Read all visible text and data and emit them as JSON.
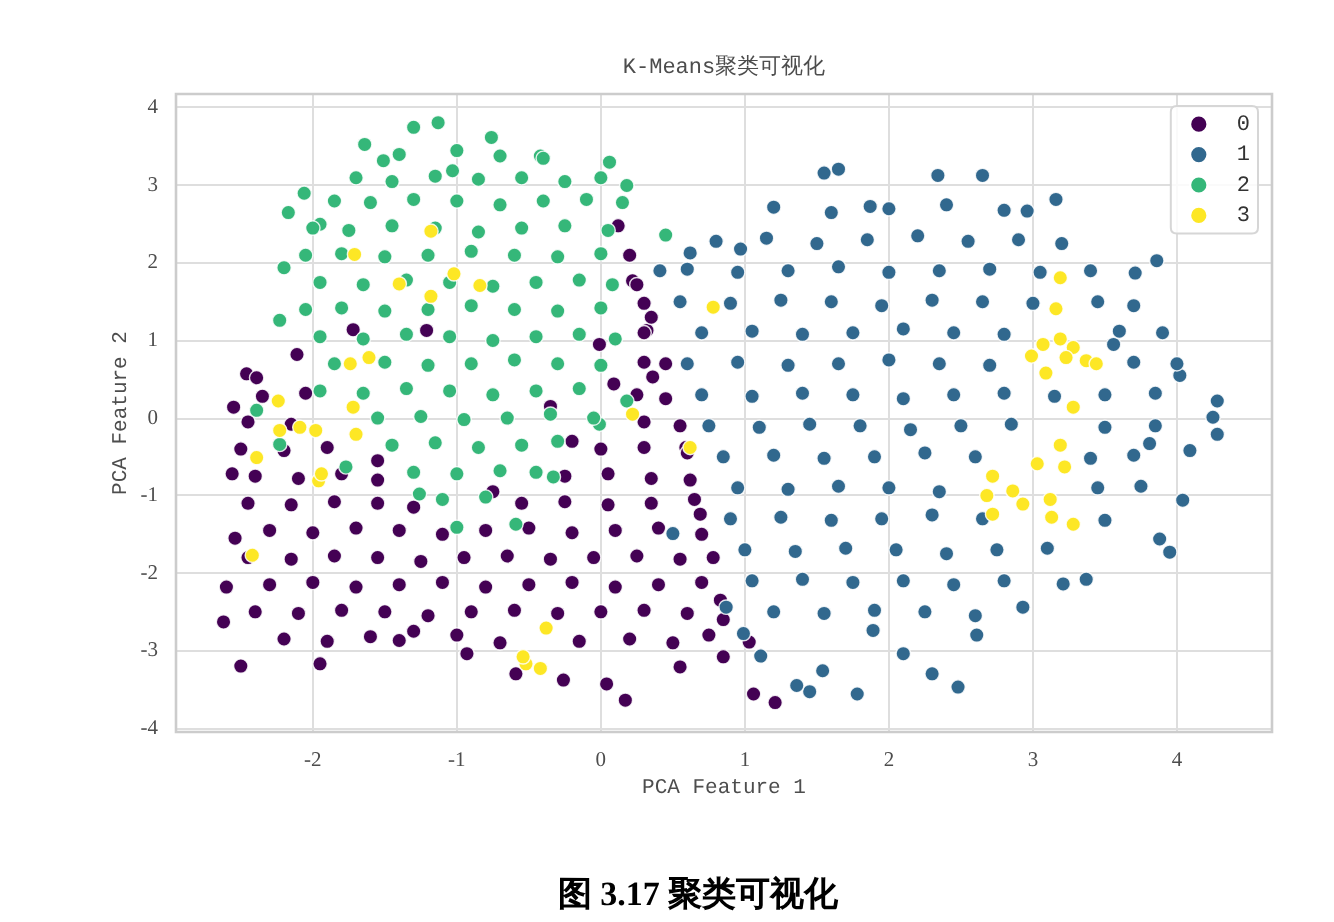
{
  "chart_data": {
    "type": "scatter",
    "title": "K-Means聚类可视化",
    "xlabel": "PCA Feature 1",
    "ylabel": "PCA Feature 2",
    "xlim": [
      -2.95,
      4.66
    ],
    "ylim": [
      -4.05,
      4.18
    ],
    "xticks": [
      -2,
      -1,
      0,
      1,
      2,
      3,
      4
    ],
    "yticks": [
      -4,
      -3,
      -2,
      -1,
      0,
      1,
      2,
      3,
      4
    ],
    "grid": true,
    "legend": "top right",
    "marker": "circle",
    "annotations": [
      "图 3.17 聚类可视化"
    ],
    "series": [
      {
        "name": "0",
        "color": "#440154",
        "x": [
          -2.5,
          -2.62,
          -2.6,
          -2.54,
          -2.56,
          -2.55,
          -1.95,
          -1.4,
          -0.59,
          0.04,
          0.17,
          -0.26,
          -0.93,
          0.55,
          1.06,
          1.21,
          1.03,
          0.85,
          0.83,
          0.69,
          0.59,
          0.12,
          0.22,
          0.32,
          0.36,
          -2.46,
          -2.39,
          -2.11,
          -1.72,
          -1.21,
          -0.01,
          0.09,
          -2.35,
          -2.05,
          0.25,
          0.45,
          -2.45,
          -2.15,
          0.3,
          0.55,
          -2.5,
          -2.2,
          -1.9,
          0,
          0.3,
          0.6,
          -2.4,
          -2.1,
          -1.8,
          -1.55,
          -0.25,
          0.05,
          0.35,
          0.62,
          -2.45,
          -2.15,
          -1.85,
          -1.55,
          -1.3,
          -0.55,
          -0.25,
          0.05,
          0.35,
          0.65,
          -2.3,
          -2,
          -1.7,
          -1.4,
          -1.1,
          -0.8,
          -0.5,
          -0.2,
          0.1,
          0.4,
          0.7,
          -2.45,
          -2.15,
          -1.85,
          -1.55,
          -1.25,
          -0.95,
          -0.65,
          -0.35,
          -0.05,
          0.25,
          0.55,
          0.78,
          -2.3,
          -2,
          -1.7,
          -1.4,
          -1.1,
          -0.8,
          -0.5,
          -0.2,
          0.1,
          0.4,
          0.7,
          -2.4,
          -2.1,
          -1.8,
          -1.5,
          -1.2,
          -0.9,
          -0.6,
          -0.3,
          0,
          0.3,
          0.6,
          0.85,
          -2.2,
          -1.9,
          -1.6,
          -1.3,
          -1,
          -0.7,
          -0.15,
          0.2,
          0.5,
          0.75,
          0.3,
          0.45,
          0.3,
          0.35,
          0.3,
          0.25,
          0.2,
          -1.55,
          -0.75,
          -0.2,
          -0.35
        ],
        "values": [
          -3.2,
          -2.63,
          -2.18,
          -1.55,
          -0.72,
          0.14,
          -3.17,
          -2.87,
          -3.3,
          -3.43,
          -3.64,
          -3.38,
          -3.04,
          -3.21,
          -3.56,
          -3.67,
          -2.89,
          -3.08,
          -2.35,
          -1.24,
          -0.38,
          2.48,
          1.77,
          1.13,
          0.53,
          0.57,
          0.52,
          0.82,
          1.14,
          1.13,
          0.95,
          0.44,
          0.28,
          0.32,
          0.3,
          0.25,
          -0.05,
          -0.08,
          -0.05,
          -0.1,
          -0.4,
          -0.42,
          -0.38,
          -0.4,
          -0.38,
          -0.45,
          -0.75,
          -0.78,
          -0.72,
          -0.8,
          -0.75,
          -0.72,
          -0.78,
          -0.8,
          -1.1,
          -1.12,
          -1.08,
          -1.1,
          -1.15,
          -1.1,
          -1.08,
          -1.12,
          -1.1,
          -1.05,
          -1.45,
          -1.48,
          -1.42,
          -1.45,
          -1.5,
          -1.45,
          -1.42,
          -1.48,
          -1.45,
          -1.42,
          -1.5,
          -1.8,
          -1.82,
          -1.78,
          -1.8,
          -1.85,
          -1.8,
          -1.78,
          -1.82,
          -1.8,
          -1.78,
          -1.82,
          -1.8,
          -2.15,
          -2.12,
          -2.18,
          -2.15,
          -2.12,
          -2.18,
          -2.15,
          -2.12,
          -2.18,
          -2.15,
          -2.12,
          -2.5,
          -2.52,
          -2.48,
          -2.5,
          -2.55,
          -2.5,
          -2.48,
          -2.52,
          -2.5,
          -2.48,
          -2.52,
          -2.6,
          -2.85,
          -2.88,
          -2.82,
          -2.75,
          -2.8,
          -2.9,
          -2.88,
          -2.85,
          -2.9,
          -2.8,
          0.72,
          0.7,
          1.1,
          1.3,
          1.48,
          1.72,
          2.1,
          -0.55,
          -0.95,
          -0.3,
          0.15
        ]
      },
      {
        "name": "1",
        "color": "#31688e",
        "x": [
          1.55,
          1.65,
          2.34,
          2.65,
          3.16,
          3.71,
          3.86,
          0.62,
          0.41,
          4.28,
          4.25,
          4.02,
          0.97,
          1.87,
          2.96,
          3.56,
          4.28,
          4.09,
          4.04,
          3.95,
          3.88,
          3.81,
          3.37,
          3.21,
          2.93,
          2.61,
          2.48,
          2.3,
          1.78,
          1.45,
          1.36,
          1.11,
          1.54,
          1.89,
          2.1,
          0.99,
          0.87,
          0.5,
          1.2,
          1.6,
          2,
          2.4,
          2.8,
          0.8,
          1.15,
          1.5,
          1.85,
          2.2,
          2.55,
          2.9,
          3.2,
          0.6,
          0.95,
          1.3,
          1.65,
          2,
          2.35,
          2.7,
          3.05,
          3.4,
          0.55,
          0.9,
          1.25,
          1.6,
          1.95,
          2.3,
          2.65,
          3,
          3.45,
          3.7,
          0.7,
          1.05,
          1.4,
          1.75,
          2.1,
          2.45,
          2.8,
          3.6,
          3.9,
          0.6,
          0.95,
          1.3,
          1.65,
          2,
          2.35,
          2.7,
          3.7,
          4,
          0.7,
          1.05,
          1.4,
          1.75,
          2.1,
          2.45,
          2.8,
          3.15,
          3.5,
          3.85,
          0.75,
          1.1,
          1.45,
          1.8,
          2.15,
          2.5,
          2.85,
          3.5,
          3.85,
          0.85,
          1.2,
          1.55,
          1.9,
          2.25,
          2.6,
          3.4,
          3.7,
          0.95,
          1.3,
          1.65,
          2,
          2.35,
          3.45,
          3.75,
          0.9,
          1.25,
          1.6,
          1.95,
          2.3,
          2.65,
          3.5,
          1,
          1.35,
          1.7,
          2.05,
          2.4,
          2.75,
          3.1,
          1.05,
          1.4,
          1.75,
          2.1,
          2.45,
          2.8,
          1.2,
          1.55,
          1.9,
          2.25,
          2.6
        ],
        "values": [
          3.16,
          3.21,
          3.13,
          3.13,
          2.82,
          1.87,
          2.03,
          2.13,
          1.9,
          0.22,
          0.01,
          0.55,
          2.18,
          2.73,
          2.67,
          0.95,
          -0.21,
          -0.42,
          -1.06,
          -1.73,
          -1.56,
          -0.33,
          -2.08,
          -2.14,
          -2.44,
          -2.8,
          -3.47,
          -3.3,
          -3.56,
          -3.53,
          -3.45,
          -3.07,
          -3.26,
          -2.74,
          -3.04,
          -2.78,
          -2.44,
          -1.49,
          2.72,
          2.65,
          2.7,
          2.75,
          2.68,
          2.28,
          2.32,
          2.25,
          2.3,
          2.35,
          2.28,
          2.3,
          2.25,
          1.92,
          1.88,
          1.9,
          1.95,
          1.88,
          1.9,
          1.92,
          1.88,
          1.9,
          1.5,
          1.48,
          1.52,
          1.5,
          1.45,
          1.52,
          1.5,
          1.48,
          1.5,
          1.45,
          1.1,
          1.12,
          1.08,
          1.1,
          1.15,
          1.1,
          1.08,
          1.12,
          1.1,
          0.7,
          0.72,
          0.68,
          0.7,
          0.75,
          0.7,
          0.68,
          0.72,
          0.7,
          0.3,
          0.28,
          0.32,
          0.3,
          0.25,
          0.3,
          0.32,
          0.28,
          0.3,
          0.32,
          -0.1,
          -0.12,
          -0.08,
          -0.1,
          -0.15,
          -0.1,
          -0.08,
          -0.12,
          -0.1,
          -0.5,
          -0.48,
          -0.52,
          -0.5,
          -0.45,
          -0.5,
          -0.52,
          -0.48,
          -0.9,
          -0.92,
          -0.88,
          -0.9,
          -0.95,
          -0.9,
          -0.88,
          -1.3,
          -1.28,
          -1.32,
          -1.3,
          -1.25,
          -1.3,
          -1.32,
          -1.7,
          -1.72,
          -1.68,
          -1.7,
          -1.75,
          -1.7,
          -1.68,
          -2.1,
          -2.08,
          -2.12,
          -2.1,
          -2.15,
          -2.1,
          -2.5,
          -2.52,
          -2.48,
          -2.5,
          -2.55
        ]
      },
      {
        "name": "2",
        "color": "#35b779",
        "x": [
          -1.13,
          -1.3,
          -1.64,
          -0.76,
          -2.06,
          -2.17,
          -2.2,
          -2.23,
          0.18,
          0.45,
          0.06,
          -0.42,
          -1.51,
          -1.95,
          -1.03,
          -1,
          -0.59,
          -0.33,
          -0.01,
          0.18,
          -1.77,
          -2.39,
          -2.23,
          -1.26,
          -1.4,
          -1,
          -0.7,
          -0.4,
          -1.7,
          -1.45,
          -1.15,
          -0.85,
          -0.55,
          -0.25,
          0,
          -1.85,
          -1.6,
          -1.3,
          -1,
          -0.7,
          -0.4,
          -0.1,
          0.15,
          -2,
          -1.75,
          -1.45,
          -1.15,
          -0.85,
          -0.55,
          -0.25,
          0.05,
          -2.05,
          -1.8,
          -1.5,
          -1.2,
          -0.9,
          -0.6,
          -0.3,
          0,
          -1.95,
          -1.65,
          -1.35,
          -1.05,
          -0.75,
          -0.45,
          -0.15,
          0.08,
          -2.05,
          -1.8,
          -1.5,
          -1.2,
          -0.9,
          -0.6,
          -0.3,
          0,
          -1.95,
          -1.65,
          -1.35,
          -1.05,
          -0.75,
          -0.45,
          -0.15,
          0.1,
          -1.85,
          -1.5,
          -1.2,
          -0.9,
          -0.6,
          -0.3,
          0,
          -1.95,
          -1.65,
          -1.35,
          -1.05,
          -0.75,
          -0.45,
          -0.15,
          -1.55,
          -1.25,
          -0.95,
          -0.65,
          -0.35,
          -0.05,
          -1.45,
          -1.15,
          -0.85,
          -0.55,
          -0.3,
          -1.3,
          -1,
          -0.7,
          -0.45,
          -1.1,
          -0.8
        ],
        "values": [
          3.81,
          3.75,
          3.53,
          3.62,
          2.9,
          2.65,
          1.94,
          1.26,
          3,
          2.36,
          3.3,
          3.38,
          3.32,
          2.5,
          3.19,
          -1.41,
          -1.37,
          -0.76,
          -0.08,
          0.22,
          -0.63,
          0.1,
          -0.34,
          -0.98,
          3.4,
          3.45,
          3.38,
          3.35,
          3.1,
          3.05,
          3.12,
          3.08,
          3.1,
          3.05,
          3.1,
          2.8,
          2.78,
          2.82,
          2.8,
          2.75,
          2.8,
          2.82,
          2.78,
          2.45,
          2.42,
          2.48,
          2.45,
          2.4,
          2.45,
          2.48,
          2.42,
          2.1,
          2.12,
          2.08,
          2.1,
          2.15,
          2.1,
          2.08,
          2.12,
          1.75,
          1.72,
          1.78,
          1.75,
          1.7,
          1.75,
          1.78,
          1.72,
          1.4,
          1.42,
          1.38,
          1.4,
          1.45,
          1.4,
          1.38,
          1.42,
          1.05,
          1.02,
          1.08,
          1.05,
          1,
          1.05,
          1.08,
          1.02,
          0.7,
          0.72,
          0.68,
          0.7,
          0.75,
          0.7,
          0.68,
          0.35,
          0.32,
          0.38,
          0.35,
          0.3,
          0.35,
          0.38,
          0,
          0.02,
          -0.02,
          0,
          0.05,
          0,
          -0.35,
          -0.32,
          -0.38,
          -0.35,
          -0.3,
          -0.7,
          -0.72,
          -0.68,
          -0.7,
          -1.05,
          -1.02
        ]
      },
      {
        "name": "3",
        "color": "#fde725",
        "x": [
          -0.52,
          -0.42,
          -0.54,
          -0.38,
          -1.96,
          -1.94,
          -2.23,
          -2.09,
          -1.98,
          -1.7,
          -1.72,
          -2.39,
          -2.42,
          0.62,
          -1.71,
          -1.18,
          -1.02,
          -0.84,
          -1.18,
          -1.4,
          -1.61,
          -1.74,
          -2.24,
          0.22,
          3.19,
          3.16,
          3.07,
          3.19,
          3.28,
          3.37,
          3.44,
          2.99,
          3.23,
          3.09,
          0.78,
          3.19,
          2.72,
          2.68,
          2.86,
          2.93,
          3.12,
          3.13,
          3.28,
          2.72,
          3.03,
          3.22,
          3.28
        ],
        "values": [
          -3.17,
          -3.23,
          -3.08,
          -2.71,
          -0.81,
          -0.72,
          -0.16,
          -0.12,
          -0.16,
          -0.21,
          0.14,
          -0.51,
          -1.77,
          -0.38,
          2.11,
          2.41,
          1.86,
          1.71,
          1.57,
          1.73,
          0.78,
          0.7,
          0.22,
          0.05,
          1.81,
          1.41,
          0.95,
          1.02,
          0.91,
          0.74,
          0.7,
          0.8,
          0.78,
          0.58,
          1.43,
          -0.35,
          -0.75,
          -1,
          -0.94,
          -1.11,
          -1.05,
          -1.28,
          -1.37,
          -1.24,
          -0.59,
          -0.63,
          0.14
        ]
      }
    ]
  }
}
